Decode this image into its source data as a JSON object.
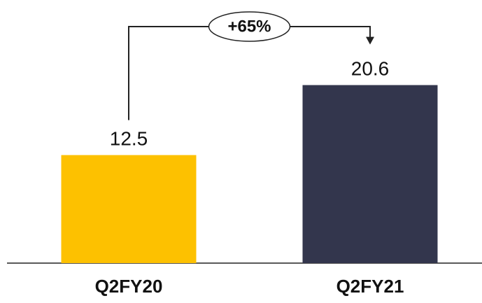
{
  "chart_data": {
    "type": "bar",
    "categories": [
      "Q2FY20",
      "Q2FY21"
    ],
    "values": [
      12.5,
      20.6
    ],
    "value_labels": [
      "12.5",
      "20.6"
    ],
    "colors": [
      "#FDC100",
      "#33364D"
    ],
    "ylim": [
      0,
      25.1
    ],
    "grid": false,
    "annotation": {
      "text": "+65%",
      "from": "Q2FY20",
      "to": "Q2FY21"
    }
  }
}
